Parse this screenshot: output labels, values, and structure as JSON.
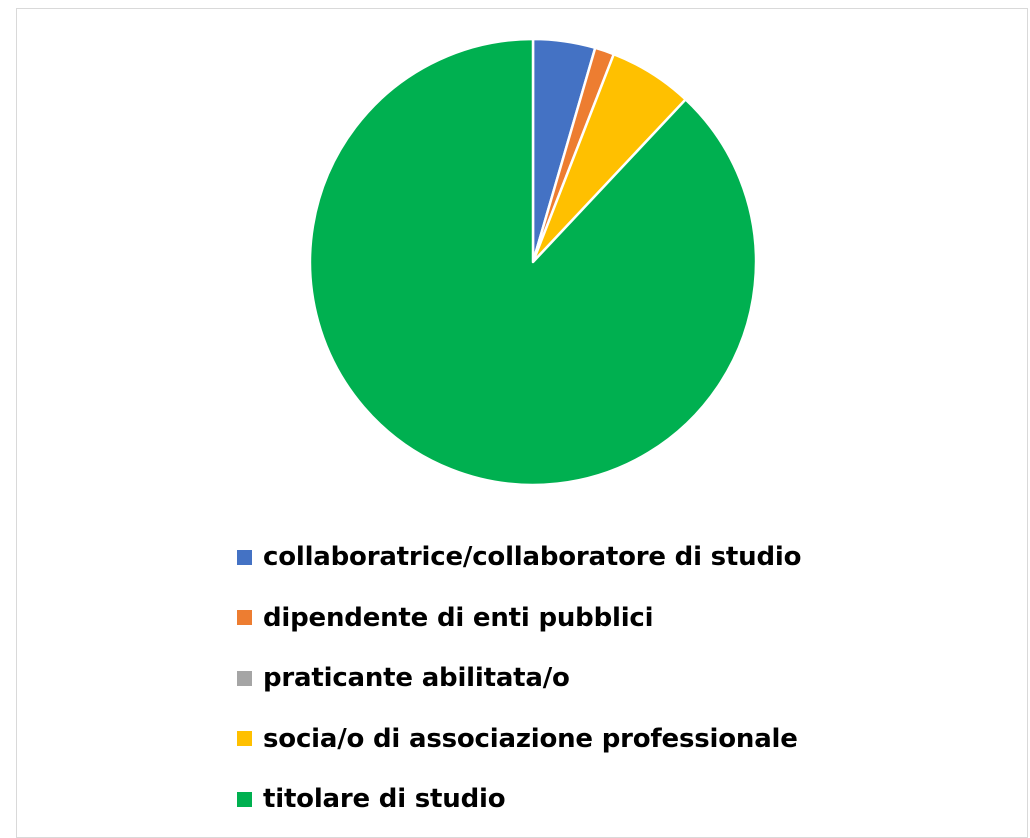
{
  "chart_data": {
    "type": "pie",
    "title": "",
    "start_angle": "12 o'clock, clockwise",
    "legend_position": "bottom",
    "slices": [
      {
        "label": "collaboratrice/collaboratore di studio",
        "value": 4.5,
        "color": "#4472C4"
      },
      {
        "label": "dipendente di enti pubblici",
        "value": 1.4,
        "color": "#ED7D31"
      },
      {
        "label": "praticante abilitata/o",
        "value": 0.0,
        "color": "#A5A5A5"
      },
      {
        "label": "socia/o di associazione professionale",
        "value": 6.1,
        "color": "#FFC000"
      },
      {
        "label": "titolare di studio",
        "value": 88.0,
        "color": "#00B050"
      }
    ]
  }
}
